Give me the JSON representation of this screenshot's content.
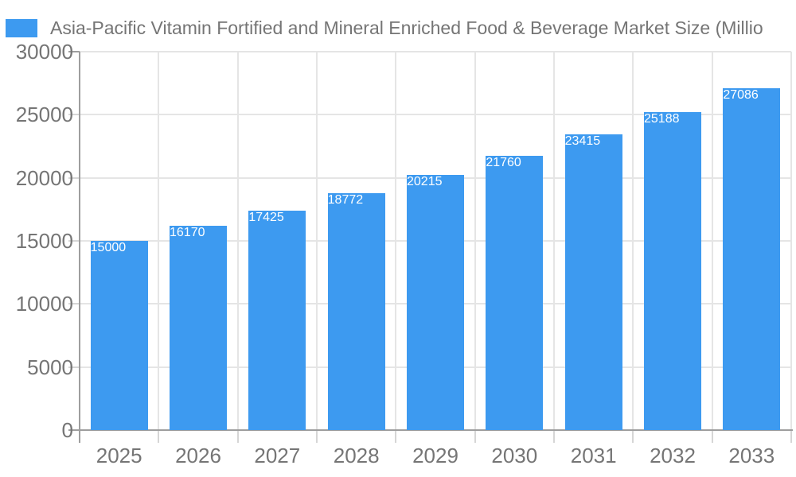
{
  "chart": {
    "legend_label": "Asia-Pacific Vitamin Fortified and Mineral Enriched Food & Beverage Market Size (Millio",
    "colors": {
      "bar": "#3D9AF0",
      "axis": "#9E9E9E",
      "grid": "#E5E5E5",
      "tick_minor": "#D6D6D6",
      "text": "#757575",
      "value_label": "#FFFFFF",
      "background": "#FFFFFF"
    }
  },
  "chart_data": {
    "type": "bar",
    "title": "Asia-Pacific Vitamin Fortified and Mineral Enriched Food & Beverage Market Size (Millio",
    "categories": [
      "2025",
      "2026",
      "2027",
      "2028",
      "2029",
      "2030",
      "2031",
      "2032",
      "2033"
    ],
    "values": [
      15000,
      16170,
      17425,
      18772,
      20215,
      21760,
      23415,
      25188,
      27086
    ],
    "series_name": "Asia-Pacific Vitamin Fortified and Mineral Enriched Food & Beverage Market Size (Millio",
    "xlabel": "",
    "ylabel": "",
    "ylim": [
      0,
      30000
    ],
    "y_ticks": [
      0,
      5000,
      10000,
      15000,
      20000,
      25000,
      30000
    ],
    "grid": true,
    "legend_position": "top-left",
    "value_labels": "inside-center"
  }
}
